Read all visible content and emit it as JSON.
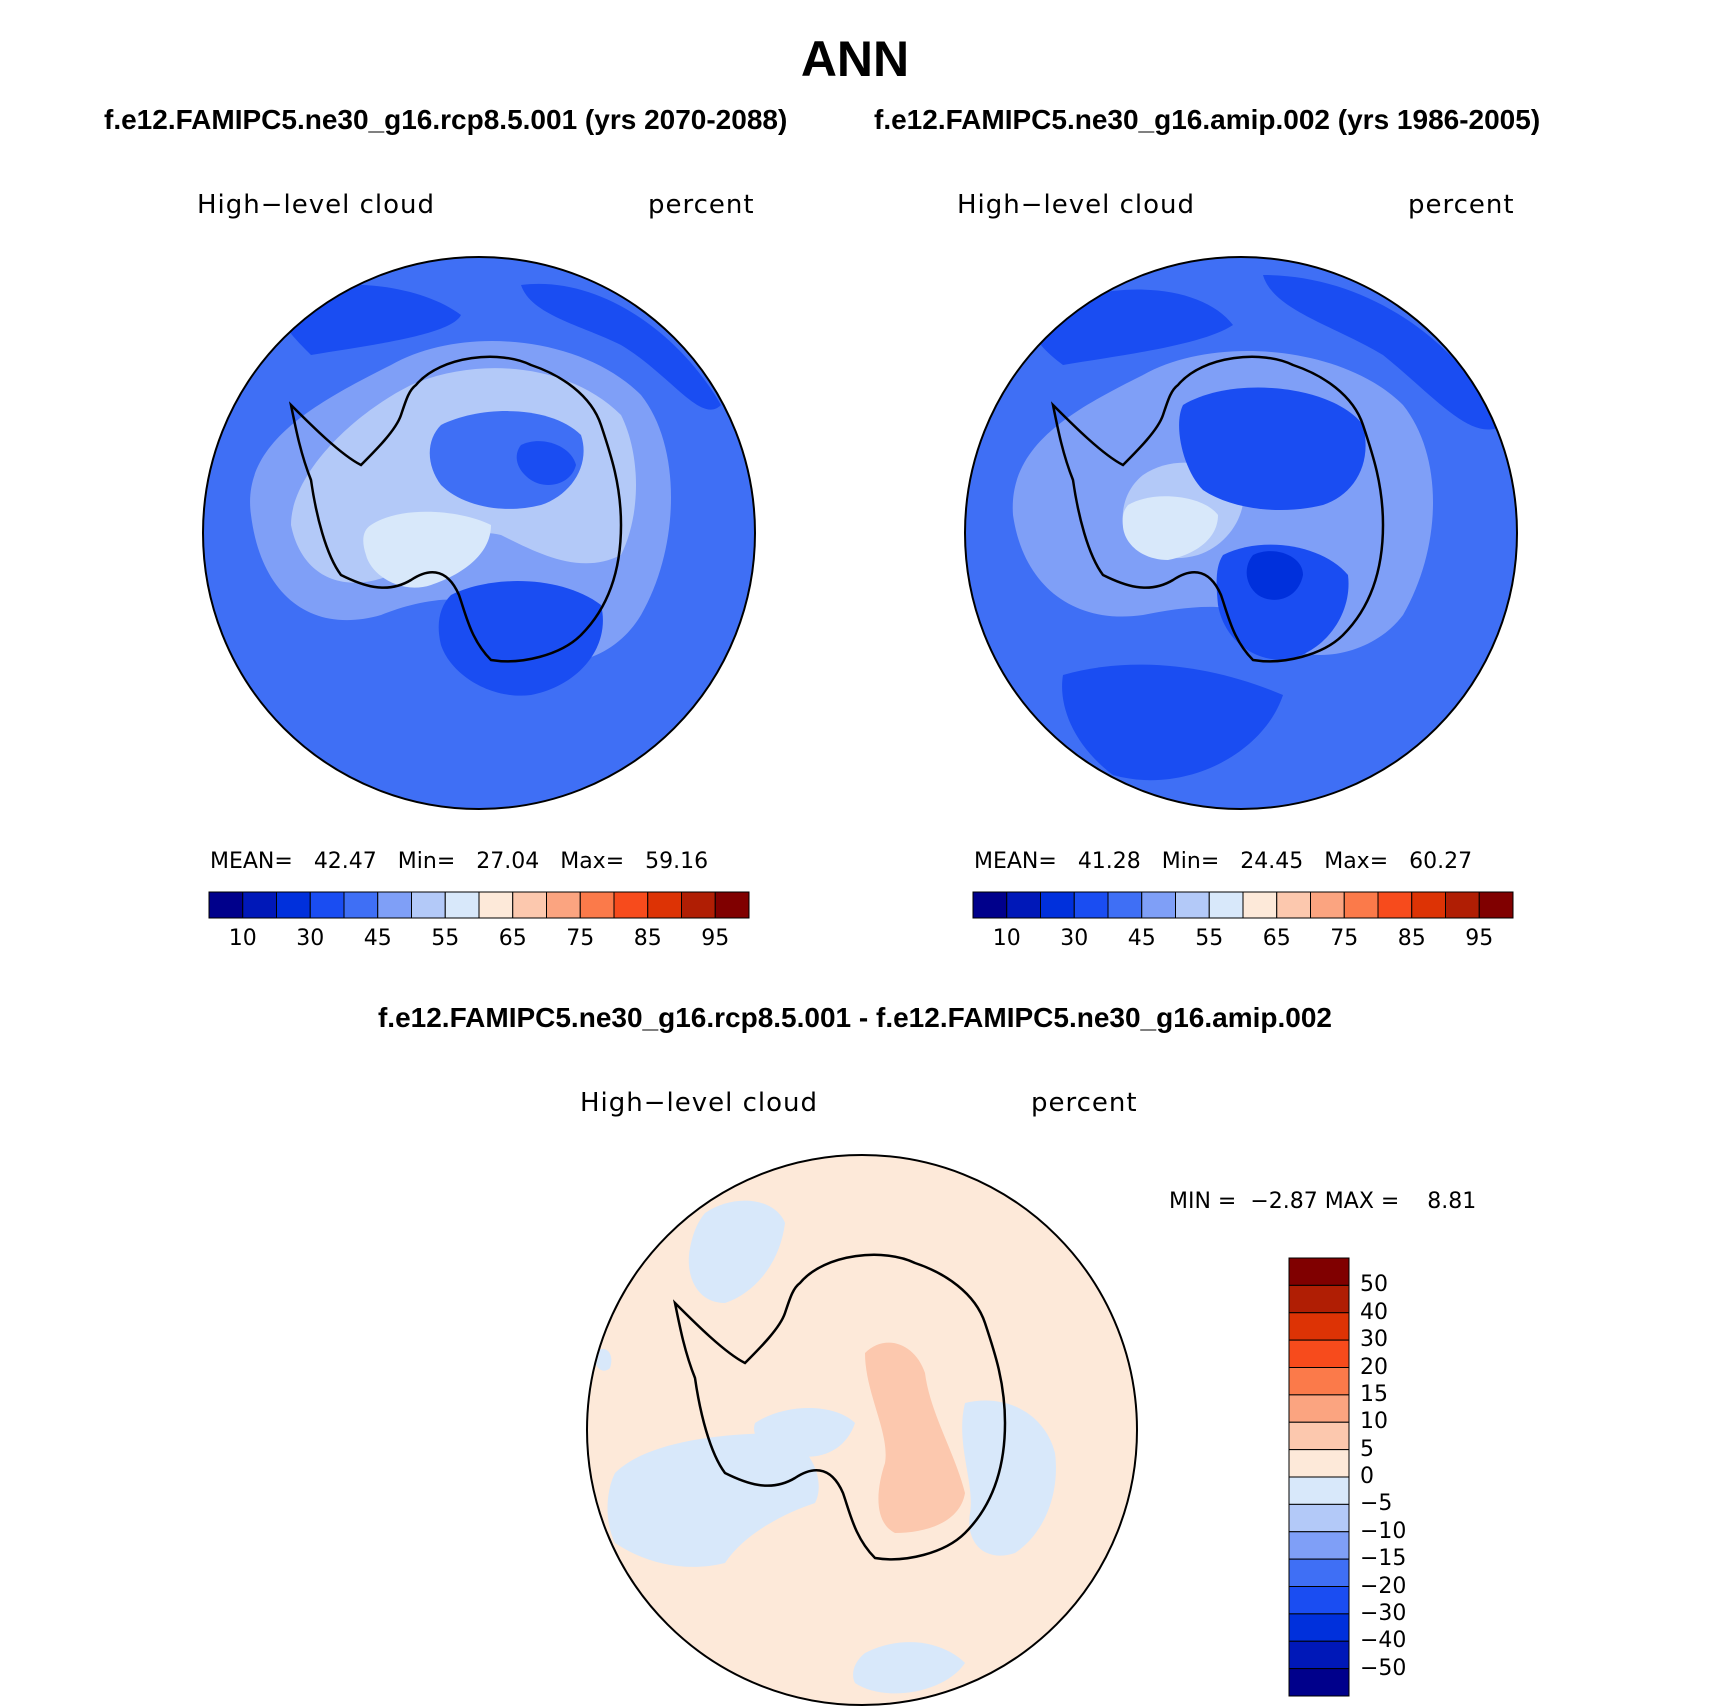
{
  "title": "ANN",
  "panels": [
    {
      "case_title": "f.e12.FAMIPC5.ne30_g16.rcp8.5.001 (yrs 2070-2088)",
      "variable": "High−level cloud",
      "units": "percent",
      "stats": {
        "mean_label": "MEAN=",
        "mean": "42.47",
        "min_label": "Min=",
        "min": "27.04",
        "max_label": "Max=",
        "max": "59.16"
      }
    },
    {
      "case_title": "f.e12.FAMIPC5.ne30_g16.amip.002 (yrs 1986-2005)",
      "variable": "High−level cloud",
      "units": "percent",
      "stats": {
        "mean_label": "MEAN=",
        "mean": "41.28",
        "min_label": "Min=",
        "min": "24.45",
        "max_label": "Max=",
        "max": "60.27"
      }
    }
  ],
  "diff_panel": {
    "case_title": "f.e12.FAMIPC5.ne30_g16.rcp8.5.001 - f.e12.FAMIPC5.ne30_g16.amip.002",
    "variable": "High−level cloud",
    "units": "percent",
    "min_label": "MIN =",
    "min": "−2.87",
    "max_label": "MAX =",
    "max": "8.81"
  },
  "colorbar_main": {
    "colors": [
      "#00008b",
      "#0018b8",
      "#0030dc",
      "#1a4df2",
      "#3f6ff5",
      "#7f9ff7",
      "#b3c9f8",
      "#d8e8fa",
      "#fde9d9",
      "#fcc8ae",
      "#fba480",
      "#fb7a4a",
      "#f74b1c",
      "#dd3305",
      "#b01e04",
      "#800000"
    ],
    "tick_labels": [
      "10",
      "30",
      "45",
      "55",
      "65",
      "75",
      "85",
      "95"
    ]
  },
  "colorbar_diff": {
    "colors": [
      "#800000",
      "#b01e04",
      "#dd3305",
      "#f74b1c",
      "#fb7a4a",
      "#fba480",
      "#fcc8ae",
      "#fde9d9",
      "#d8e8fa",
      "#b3c9f8",
      "#7f9ff7",
      "#3f6ff5",
      "#1a4df2",
      "#0030dc",
      "#0018b8",
      "#00008b"
    ],
    "tick_labels": [
      "50",
      "40",
      "30",
      "20",
      "15",
      "10",
      "5",
      "0",
      "−5",
      "−10",
      "−15",
      "−20",
      "−30",
      "−40",
      "−50"
    ]
  },
  "map_colors": {
    "ocean_main": "#3f6ff5",
    "ocean_deep": "#1a4df2",
    "band_light": "#7f9ff7",
    "band_lighter": "#b3c9f8",
    "peak": "#d8e8fa",
    "center_dark": "#0030dc",
    "diff_pos": "#fde9d9",
    "diff_pos2": "#fcc8ae",
    "diff_neg": "#d8e8fa"
  }
}
